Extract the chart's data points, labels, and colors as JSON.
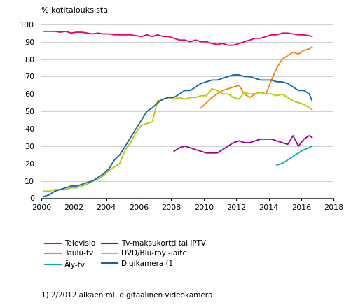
{
  "title": "% kotitalouksista",
  "footnote": "1) 2/2012 alkaen ml. digitaalinen videokamera",
  "xlim": [
    2000,
    2018
  ],
  "ylim": [
    0,
    100
  ],
  "yticks": [
    0,
    10,
    20,
    30,
    40,
    50,
    60,
    70,
    80,
    90,
    100
  ],
  "xticks": [
    2000,
    2002,
    2004,
    2006,
    2008,
    2010,
    2012,
    2014,
    2016,
    2018
  ],
  "colors": {
    "televisio": "#e8006f",
    "taulu_tv": "#f5820a",
    "aly_tv": "#00b0b0",
    "tv_maksukortti": "#9b009b",
    "dvd_bluray": "#b5c900",
    "digikamera": "#1464a0"
  },
  "televisio": {
    "x": [
      2000.17,
      2000.5,
      2000.83,
      2001.17,
      2001.5,
      2001.83,
      2002.17,
      2002.5,
      2002.83,
      2003.17,
      2003.5,
      2003.83,
      2004.17,
      2004.5,
      2004.83,
      2005.17,
      2005.5,
      2005.83,
      2006.17,
      2006.5,
      2006.83,
      2007.17,
      2007.5,
      2007.83,
      2008.17,
      2008.5,
      2008.83,
      2009.17,
      2009.5,
      2009.83,
      2010.17,
      2010.5,
      2010.83,
      2011.17,
      2011.5,
      2011.83,
      2012.17,
      2012.5,
      2012.83,
      2013.17,
      2013.5,
      2013.83,
      2014.17,
      2014.5,
      2014.83,
      2015.17,
      2015.5,
      2015.83,
      2016.17,
      2016.5,
      2016.67
    ],
    "y": [
      96,
      96,
      96,
      95.5,
      96,
      95,
      95.5,
      95.5,
      95,
      94.5,
      95,
      94.5,
      94.5,
      94,
      94,
      94,
      94,
      93.5,
      93,
      94,
      93,
      94,
      93,
      93,
      92,
      91,
      91,
      90,
      91,
      90,
      90,
      89,
      88.5,
      89,
      88,
      88,
      89,
      90,
      91,
      92,
      92,
      93,
      94,
      94,
      95,
      95,
      94.5,
      94,
      94,
      93.5,
      93
    ]
  },
  "taulu_tv": {
    "x": [
      2009.83,
      2010.17,
      2010.5,
      2010.83,
      2011.17,
      2011.5,
      2011.83,
      2012.17,
      2012.5,
      2012.83,
      2013.17,
      2013.5,
      2013.83,
      2014.17,
      2014.5,
      2014.83,
      2015.17,
      2015.5,
      2015.83,
      2016.17,
      2016.5,
      2016.67
    ],
    "y": [
      52,
      55,
      58,
      60,
      62,
      63,
      64,
      65,
      60,
      58,
      60,
      61,
      60,
      68,
      75,
      80,
      82,
      84,
      83,
      85,
      86,
      87
    ]
  },
  "aly_tv": {
    "x": [
      2014.5,
      2014.83,
      2015.17,
      2015.5,
      2015.83,
      2016.17,
      2016.5,
      2016.67
    ],
    "y": [
      19,
      20,
      22,
      24,
      26,
      28,
      29,
      30
    ]
  },
  "tv_maksukortti": {
    "x": [
      2008.17,
      2008.5,
      2008.83,
      2009.17,
      2009.5,
      2009.83,
      2010.17,
      2010.5,
      2010.83,
      2011.17,
      2011.5,
      2011.83,
      2012.17,
      2012.5,
      2012.83,
      2013.17,
      2013.5,
      2013.83,
      2014.17,
      2014.5,
      2014.83,
      2015.17,
      2015.5,
      2015.83,
      2016.17,
      2016.5,
      2016.67
    ],
    "y": [
      27,
      29,
      30,
      29,
      28,
      27,
      26,
      26,
      26,
      28,
      30,
      32,
      33,
      32,
      32,
      33,
      34,
      34,
      34,
      33,
      32,
      31,
      36,
      30,
      34,
      36,
      35
    ]
  },
  "dvd_bluray": {
    "x": [
      2000.17,
      2000.5,
      2000.83,
      2001.17,
      2001.5,
      2001.83,
      2002.17,
      2002.5,
      2002.83,
      2003.17,
      2003.5,
      2003.83,
      2004.17,
      2004.5,
      2004.83,
      2005.17,
      2005.5,
      2005.83,
      2006.17,
      2006.5,
      2006.83,
      2007.17,
      2007.5,
      2007.83,
      2008.17,
      2008.5,
      2008.83,
      2009.17,
      2009.5,
      2009.83,
      2010.17,
      2010.5,
      2010.83,
      2011.17,
      2011.5,
      2011.83,
      2012.17,
      2012.5,
      2012.83,
      2013.17,
      2013.5,
      2013.83,
      2014.17,
      2014.5,
      2014.83,
      2015.17,
      2015.5,
      2015.83,
      2016.17,
      2016.5,
      2016.67
    ],
    "y": [
      4,
      4,
      5,
      5,
      5,
      6,
      6,
      7,
      8,
      10,
      11,
      13,
      16,
      18,
      20,
      28,
      32,
      38,
      42,
      43,
      44,
      56,
      57,
      58,
      57,
      58,
      57,
      58,
      58,
      59,
      59,
      63,
      62,
      60,
      60,
      58,
      57,
      61,
      60,
      60,
      61,
      60,
      60,
      59,
      60,
      58,
      56,
      55,
      54,
      52,
      51
    ]
  },
  "digikamera": {
    "x": [
      2000.17,
      2000.5,
      2000.83,
      2001.17,
      2001.5,
      2001.83,
      2002.17,
      2002.5,
      2002.83,
      2003.17,
      2003.5,
      2003.83,
      2004.17,
      2004.5,
      2004.83,
      2005.17,
      2005.5,
      2005.83,
      2006.17,
      2006.5,
      2006.83,
      2007.17,
      2007.5,
      2007.83,
      2008.17,
      2008.5,
      2008.83,
      2009.17,
      2009.5,
      2009.83,
      2010.17,
      2010.5,
      2010.83,
      2011.17,
      2011.5,
      2011.83,
      2012.17,
      2012.5,
      2012.83,
      2013.17,
      2013.5,
      2013.83,
      2014.17,
      2014.5,
      2014.83,
      2015.17,
      2015.5,
      2015.83,
      2016.17,
      2016.5,
      2016.67
    ],
    "y": [
      1,
      2,
      4,
      5,
      6,
      7,
      7,
      8,
      9,
      10,
      12,
      14,
      17,
      22,
      25,
      30,
      35,
      40,
      45,
      50,
      52,
      55,
      57,
      58,
      58,
      60,
      62,
      62,
      64,
      66,
      67,
      68,
      68,
      69,
      70,
      71,
      71,
      70,
      70,
      69,
      68,
      68,
      68,
      67,
      67,
      66,
      64,
      62,
      62,
      60,
      56
    ]
  },
  "legend": [
    {
      "label": "Televisio",
      "color": "#e8006f"
    },
    {
      "label": "Taulu-tv",
      "color": "#f5820a"
    },
    {
      "label": "Äly-tv",
      "color": "#00b0b0"
    },
    {
      "label": "Tv-maksukortti tai IPTV",
      "color": "#9b009b"
    },
    {
      "label": "DVD/Blu-ray -laite",
      "color": "#b5c900"
    },
    {
      "label": "Digikamera (1",
      "color": "#1464a0"
    }
  ]
}
